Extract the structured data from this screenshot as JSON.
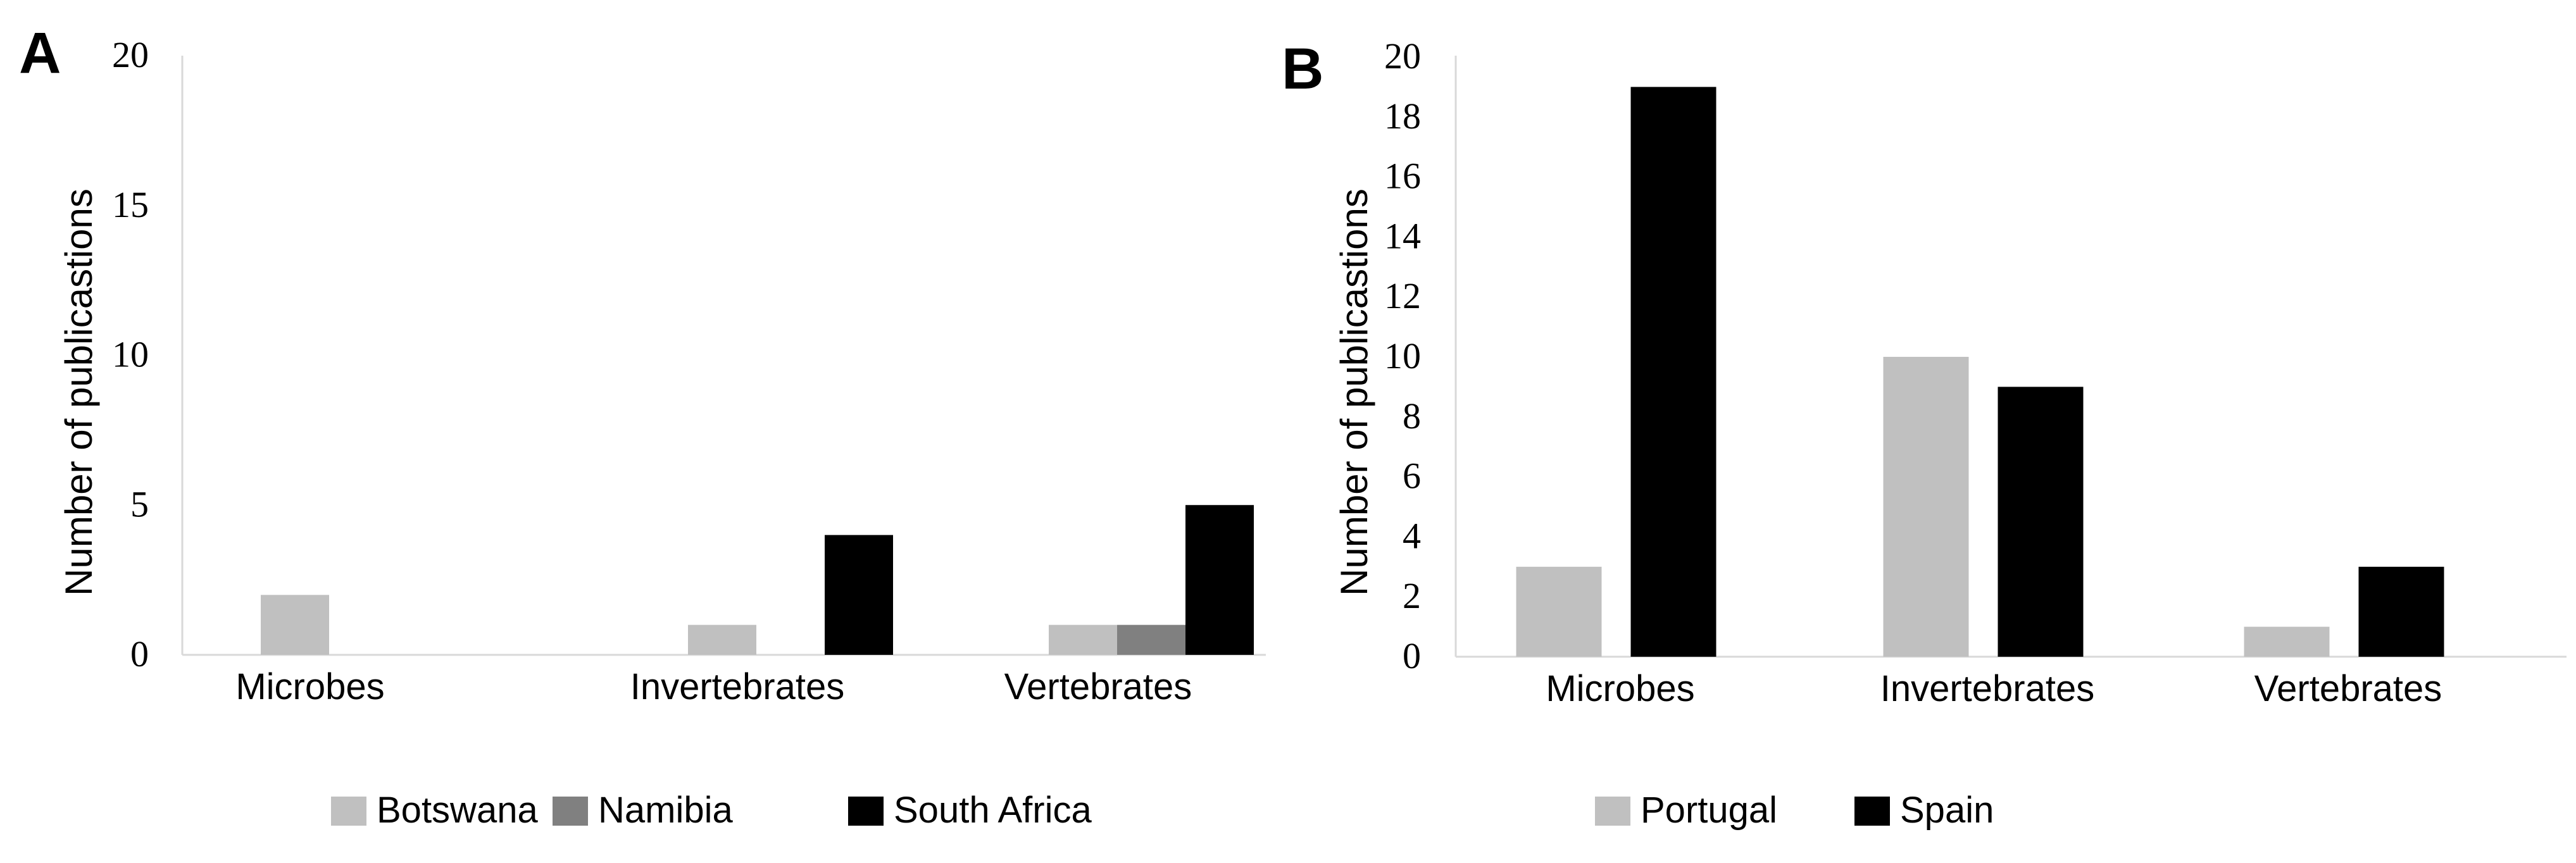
{
  "chart_data": [
    {
      "panel_label": "A",
      "type": "bar",
      "title": "",
      "xlabel": "",
      "ylabel": "Number of publicastions",
      "ylim": [
        0,
        20
      ],
      "yticks": [
        "0",
        "5",
        "10",
        "15",
        "20"
      ],
      "grid": false,
      "categories": [
        "Microbes",
        "Invertebrates",
        "Vertebrates"
      ],
      "series": [
        {
          "name": "Botswana",
          "color": "#c0c0c0",
          "values": [
            2,
            1,
            1
          ]
        },
        {
          "name": "Namibia",
          "color": "#808080",
          "values": [
            0,
            0,
            1
          ]
        },
        {
          "name": "South Africa",
          "color": "#000000",
          "values": [
            0,
            4,
            5
          ]
        }
      ],
      "legend_position": "bottom"
    },
    {
      "panel_label": "B",
      "type": "bar",
      "title": "",
      "xlabel": "",
      "ylabel": "Number of publicastions",
      "ylim": [
        0,
        20
      ],
      "yticks": [
        "0",
        "2",
        "4",
        "6",
        "8",
        "10",
        "12",
        "14",
        "16",
        "18",
        "20"
      ],
      "grid": false,
      "categories": [
        "Microbes",
        "Invertebrates",
        "Vertebrates"
      ],
      "series": [
        {
          "name": "Portugal",
          "color": "#c0c0c0",
          "values": [
            3,
            10,
            1
          ]
        },
        {
          "name": "Spain",
          "color": "#000000",
          "values": [
            19,
            9,
            3
          ]
        }
      ],
      "legend_position": "bottom"
    }
  ]
}
